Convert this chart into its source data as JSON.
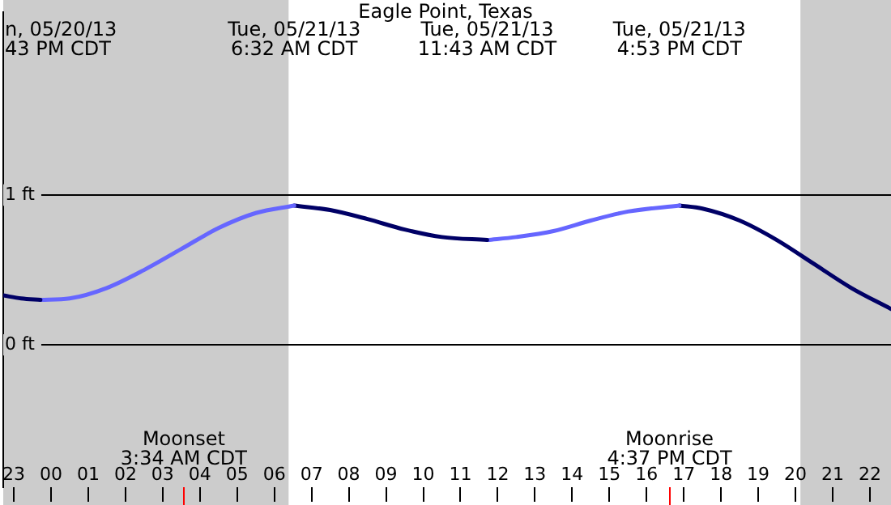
{
  "chart_data": {
    "type": "line",
    "title": "Eagle Point, Texas",
    "xlim": [
      "--05-20T22:43",
      "--05-21T22:34"
    ],
    "xticks": [
      {
        "value": "--05-20T23:00",
        "label": "23"
      },
      {
        "value": "--05-21T00:00",
        "label": "00"
      },
      {
        "value": "--05-21T01:00",
        "label": "01"
      },
      {
        "value": "--05-21T02:00",
        "label": "02"
      },
      {
        "value": "--05-21T03:00",
        "label": "03"
      },
      {
        "value": "--05-21T04:00",
        "label": "04"
      },
      {
        "value": "--05-21T05:00",
        "label": "05"
      },
      {
        "value": "--05-21T06:00",
        "label": "06"
      },
      {
        "value": "--05-21T07:00",
        "label": "07"
      },
      {
        "value": "--05-21T08:00",
        "label": "08"
      },
      {
        "value": "--05-21T09:00",
        "label": "09"
      },
      {
        "value": "--05-21T10:00",
        "label": "10"
      },
      {
        "value": "--05-21T11:00",
        "label": "11"
      },
      {
        "value": "--05-21T12:00",
        "label": "12"
      },
      {
        "value": "--05-21T13:00",
        "label": "13"
      },
      {
        "value": "--05-21T14:00",
        "label": "14"
      },
      {
        "value": "--05-21T15:00",
        "label": "15"
      },
      {
        "value": "--05-21T16:00",
        "label": "16"
      },
      {
        "value": "--05-21T17:00",
        "label": "17"
      },
      {
        "value": "--05-21T18:00",
        "label": "18"
      },
      {
        "value": "--05-21T19:00",
        "label": "19"
      },
      {
        "value": "--05-21T20:00",
        "label": "20"
      },
      {
        "value": "--05-21T21:00",
        "label": "21"
      },
      {
        "value": "--05-21T22:00",
        "label": "22"
      }
    ],
    "ylim": [
      -0.95,
      2.22
    ],
    "yticks": [
      {
        "value": 0,
        "label": "0 ft"
      },
      {
        "value": 1,
        "label": "1 ft"
      }
    ],
    "grid": "y",
    "legend": false,
    "marker": "none",
    "line_style": "solid",
    "series": [
      {
        "color": "#000066",
        "x": [
          "--05-20T22:43",
          "--05-20T23:12",
          "--05-20T23:43"
        ],
        "values": [
          0.33,
          0.31,
          0.3
        ]
      },
      {
        "color": "#6666ff",
        "x": [
          "--05-20T23:43",
          "--05-21T00:30",
          "--05-21T01:30",
          "--05-21T02:30",
          "--05-21T03:30",
          "--05-21T04:30",
          "--05-21T05:30",
          "--05-21T06:32"
        ],
        "values": [
          0.3,
          0.31,
          0.38,
          0.5,
          0.64,
          0.78,
          0.88,
          0.93
        ]
      },
      {
        "color": "#000066",
        "x": [
          "--05-21T06:32",
          "--05-21T07:30",
          "--05-21T08:30",
          "--05-21T09:30",
          "--05-21T10:30",
          "--05-21T11:43"
        ],
        "values": [
          0.93,
          0.9,
          0.84,
          0.77,
          0.72,
          0.7
        ]
      },
      {
        "color": "#6666ff",
        "x": [
          "--05-21T11:43",
          "--05-21T12:30",
          "--05-21T13:30",
          "--05-21T14:30",
          "--05-21T15:30",
          "--05-21T16:53"
        ],
        "values": [
          0.7,
          0.72,
          0.76,
          0.83,
          0.89,
          0.93
        ]
      },
      {
        "color": "#000066",
        "x": [
          "--05-21T16:53",
          "--05-21T17:30",
          "--05-21T18:30",
          "--05-21T19:30",
          "--05-21T20:30",
          "--05-21T21:30",
          "--05-21T22:34"
        ],
        "values": [
          0.93,
          0.91,
          0.83,
          0.7,
          0.54,
          0.38,
          0.24
        ]
      }
    ],
    "bands": [
      {
        "axis": "x",
        "from": "--05-20T22:43",
        "to": "--05-21T06:23",
        "color": "#cccccc"
      },
      {
        "axis": "x",
        "from": "--05-21T20:08",
        "to": "--05-21T22:34",
        "color": "#cccccc"
      }
    ],
    "ref_lines": [
      {
        "axis": "x",
        "value": "--05-21T03:34",
        "label": "Moonset\n3:34 AM CDT",
        "color": "#ff0000"
      },
      {
        "axis": "x",
        "value": "--05-21T16:37",
        "label": "Moonrise\n4:37 PM CDT",
        "color": "#ff0000"
      }
    ],
    "annotations": [
      "n, 05/20/13\n43 PM CDT",
      "Tue, 05/21/13\n6:32 AM CDT",
      "Tue, 05/21/13\n11:43 AM CDT",
      "Tue, 05/21/13\n4:53 PM CDT"
    ]
  }
}
